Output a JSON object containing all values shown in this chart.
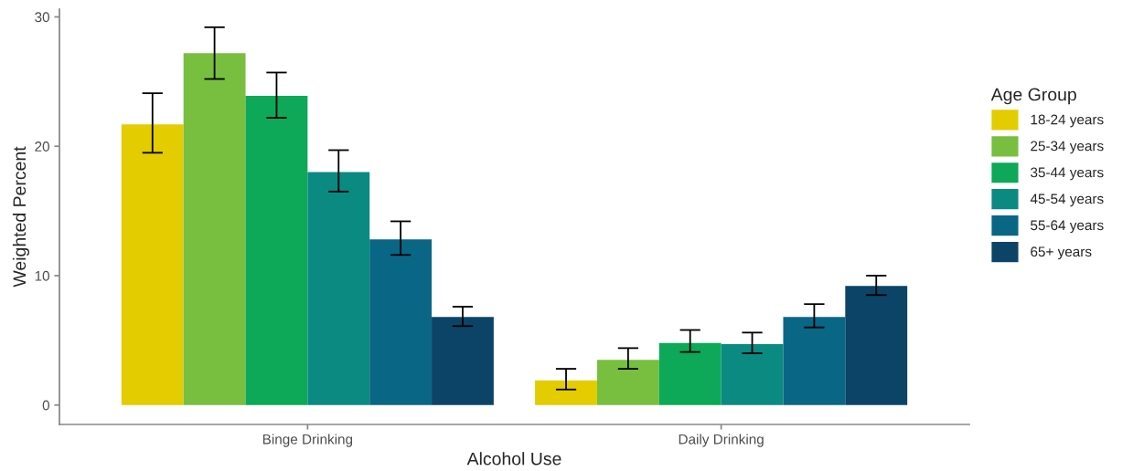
{
  "chart_data": {
    "type": "bar",
    "xlabel": "Alcohol Use",
    "ylabel": "Weighted Percent",
    "legend_title": "Age Group",
    "categories": [
      "Binge Drinking",
      "Daily Drinking"
    ],
    "series": [
      {
        "name": "18-24 years",
        "color": "#e3cc00",
        "values": [
          21.7,
          1.9
        ],
        "errors": [
          [
            19.5,
            24.1
          ],
          [
            1.2,
            2.8
          ]
        ]
      },
      {
        "name": "25-34 years",
        "color": "#78be3f",
        "values": [
          27.2,
          3.5
        ],
        "errors": [
          [
            25.2,
            29.2
          ],
          [
            2.8,
            4.4
          ]
        ]
      },
      {
        "name": "35-44 years",
        "color": "#0da858",
        "values": [
          23.9,
          4.8
        ],
        "errors": [
          [
            22.2,
            25.7
          ],
          [
            4.1,
            5.8
          ]
        ]
      },
      {
        "name": "45-54 years",
        "color": "#0b8a82",
        "values": [
          18.0,
          4.7
        ],
        "errors": [
          [
            16.5,
            19.7
          ],
          [
            4.0,
            5.6
          ]
        ]
      },
      {
        "name": "55-64 years",
        "color": "#0a6685",
        "values": [
          12.8,
          6.8
        ],
        "errors": [
          [
            11.6,
            14.2
          ],
          [
            6.0,
            7.8
          ]
        ]
      },
      {
        "name": "65+ years",
        "color": "#0b4466",
        "values": [
          6.8,
          9.2
        ],
        "errors": [
          [
            6.1,
            7.6
          ],
          [
            8.5,
            10.0
          ]
        ]
      }
    ],
    "ylim": [
      -1.5,
      30.6
    ],
    "yticks": [
      0,
      10,
      20,
      30
    ],
    "grid": false,
    "legend": "right"
  }
}
